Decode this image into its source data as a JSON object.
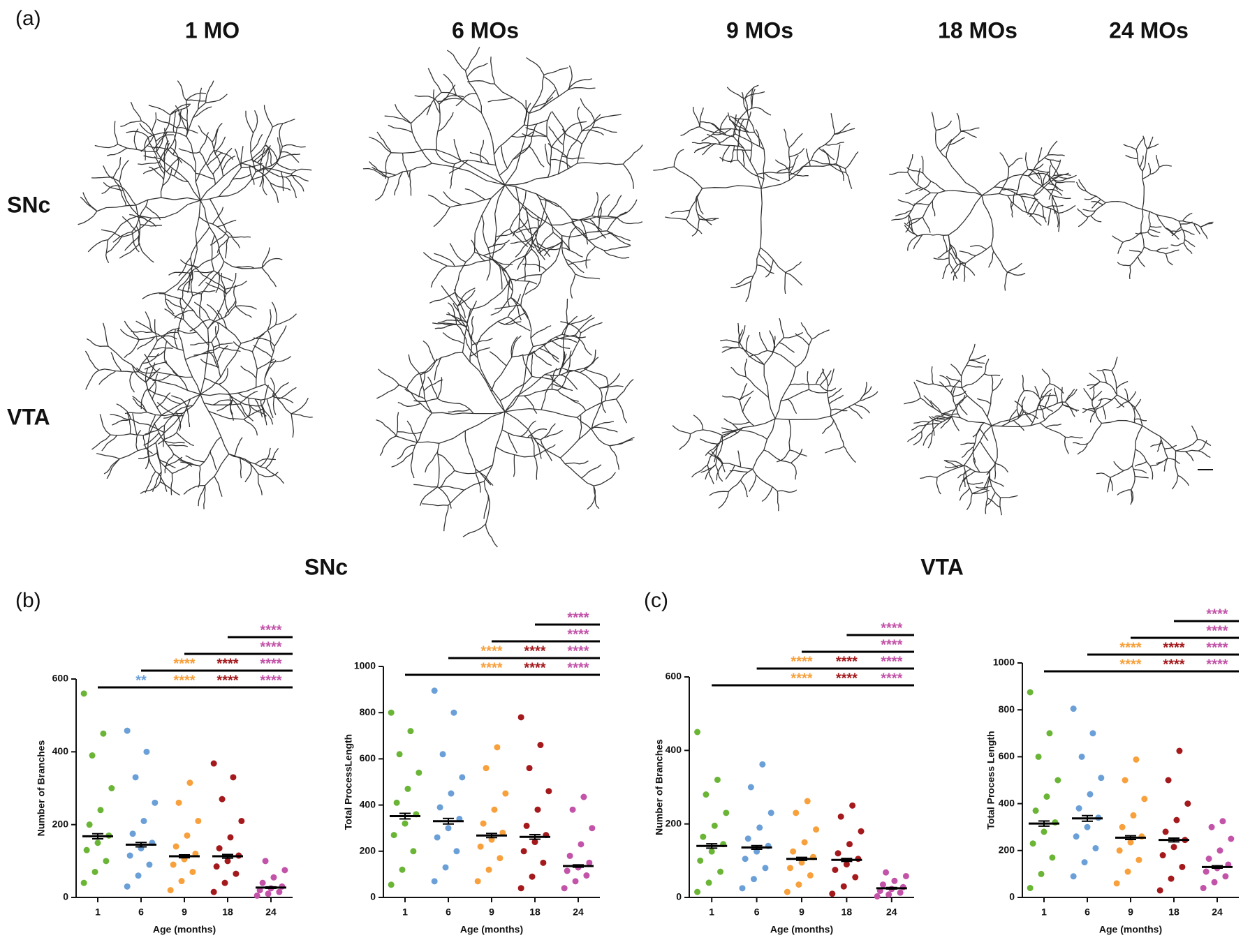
{
  "panel_labels": [
    "(a)",
    "(b)",
    "(c)"
  ],
  "headers": [
    "1 MO",
    "6 MOs",
    "9 MOs",
    "18 MOs",
    "24 MOs"
  ],
  "row_labels": [
    "SNc",
    "VTA"
  ],
  "section_titles": [
    "SNc",
    "VTA"
  ],
  "chart_data": [
    {
      "type": "strip",
      "xlabel": "Age (months)",
      "ylabel": "Number of Branches",
      "categories": [
        "1",
        "6",
        "9",
        "18",
        "24"
      ],
      "colors": [
        "#6bb536",
        "#6a9fd8",
        "#f7a03c",
        "#a3191c",
        "#c253a8"
      ],
      "means": [
        168,
        145,
        113,
        113,
        27
      ],
      "sem": [
        7,
        6,
        4,
        5,
        2
      ],
      "points": [
        [
          40,
          70,
          100,
          130,
          150,
          170,
          200,
          240,
          300,
          390,
          450,
          560
        ],
        [
          30,
          60,
          90,
          115,
          135,
          150,
          175,
          210,
          260,
          330,
          400,
          458
        ],
        [
          20,
          45,
          70,
          90,
          105,
          120,
          140,
          170,
          210,
          260,
          315
        ],
        [
          15,
          40,
          65,
          85,
          100,
          115,
          135,
          165,
          210,
          270,
          330,
          368
        ],
        [
          5,
          10,
          15,
          20,
          25,
          30,
          40,
          55,
          75,
          100
        ]
      ],
      "ylim": [
        0,
        600
      ],
      "yticks": [
        0,
        200,
        400,
        600
      ],
      "comparisons": [
        {
          "from": "1",
          "stars": [
            {
              "at": "6",
              "label": "**"
            },
            {
              "at": "9",
              "label": "****"
            },
            {
              "at": "18",
              "label": "****"
            },
            {
              "at": "24",
              "label": "****"
            }
          ]
        },
        {
          "from": "6",
          "stars": [
            {
              "at": "9",
              "label": "****"
            },
            {
              "at": "18",
              "label": "****"
            },
            {
              "at": "24",
              "label": "****"
            }
          ]
        },
        {
          "from": "9",
          "stars": [
            {
              "at": "24",
              "label": "****"
            }
          ]
        },
        {
          "from": "18",
          "stars": [
            {
              "at": "24",
              "label": "****"
            }
          ]
        }
      ]
    },
    {
      "type": "strip",
      "xlabel": "Age (months)",
      "ylabel": "Total ProcessLength",
      "categories": [
        "1",
        "6",
        "9",
        "18",
        "24"
      ],
      "colors": [
        "#6bb536",
        "#6a9fd8",
        "#f7a03c",
        "#a3191c",
        "#c253a8"
      ],
      "means": [
        352,
        330,
        268,
        262,
        136
      ],
      "sem": [
        12,
        12,
        9,
        10,
        5
      ],
      "points": [
        [
          55,
          120,
          200,
          270,
          320,
          360,
          410,
          470,
          540,
          620,
          720,
          800
        ],
        [
          70,
          130,
          200,
          260,
          300,
          340,
          390,
          450,
          520,
          620,
          800,
          895
        ],
        [
          70,
          120,
          170,
          220,
          250,
          280,
          320,
          380,
          450,
          560,
          650
        ],
        [
          40,
          90,
          150,
          200,
          240,
          270,
          310,
          380,
          460,
          560,
          660,
          780
        ],
        [
          40,
          70,
          95,
          115,
          130,
          150,
          180,
          230,
          300,
          380,
          435
        ]
      ],
      "ylim": [
        0,
        1000
      ],
      "yticks": [
        0,
        200,
        400,
        600,
        800,
        1000
      ],
      "comparisons": [
        {
          "from": "1",
          "stars": [
            {
              "at": "9",
              "label": "****"
            },
            {
              "at": "18",
              "label": "****"
            },
            {
              "at": "24",
              "label": "****"
            }
          ]
        },
        {
          "from": "6",
          "stars": [
            {
              "at": "9",
              "label": "****"
            },
            {
              "at": "18",
              "label": "****"
            },
            {
              "at": "24",
              "label": "****"
            }
          ]
        },
        {
          "from": "9",
          "stars": [
            {
              "at": "24",
              "label": "****"
            }
          ]
        },
        {
          "from": "18",
          "stars": [
            {
              "at": "24",
              "label": "****"
            }
          ]
        }
      ]
    },
    {
      "type": "strip",
      "xlabel": "Age (months)",
      "ylabel": "Number of Branches",
      "categories": [
        "1",
        "6",
        "9",
        "18",
        "24"
      ],
      "colors": [
        "#6bb536",
        "#6a9fd8",
        "#f7a03c",
        "#a3191c",
        "#c253a8"
      ],
      "means": [
        140,
        136,
        105,
        102,
        25
      ],
      "sem": [
        6,
        5,
        4,
        4,
        2
      ],
      "points": [
        [
          15,
          40,
          70,
          100,
          125,
          145,
          165,
          195,
          230,
          280,
          320,
          450
        ],
        [
          25,
          50,
          80,
          105,
          125,
          140,
          160,
          190,
          230,
          300,
          362
        ],
        [
          15,
          35,
          60,
          80,
          95,
          110,
          125,
          150,
          185,
          230,
          262
        ],
        [
          10,
          30,
          55,
          75,
          90,
          105,
          120,
          145,
          180,
          220,
          250
        ],
        [
          3,
          8,
          13,
          18,
          23,
          28,
          35,
          45,
          58,
          68
        ]
      ],
      "ylim": [
        0,
        600
      ],
      "yticks": [
        0,
        200,
        400,
        600
      ],
      "comparisons": [
        {
          "from": "1",
          "stars": [
            {
              "at": "9",
              "label": "****"
            },
            {
              "at": "18",
              "label": "****"
            },
            {
              "at": "24",
              "label": "****"
            }
          ]
        },
        {
          "from": "6",
          "stars": [
            {
              "at": "9",
              "label": "****"
            },
            {
              "at": "18",
              "label": "****"
            },
            {
              "at": "24",
              "label": "****"
            }
          ]
        },
        {
          "from": "9",
          "stars": [
            {
              "at": "24",
              "label": "****"
            }
          ]
        },
        {
          "from": "18",
          "stars": [
            {
              "at": "24",
              "label": "****"
            }
          ]
        }
      ]
    },
    {
      "type": "strip",
      "xlabel": "Age (months)",
      "ylabel": "Total Process Length",
      "categories": [
        "1",
        "6",
        "9",
        "18",
        "24"
      ],
      "colors": [
        "#6bb536",
        "#6a9fd8",
        "#f7a03c",
        "#a3191c",
        "#c253a8"
      ],
      "means": [
        315,
        337,
        255,
        245,
        130
      ],
      "sem": [
        11,
        12,
        8,
        8,
        5
      ],
      "points": [
        [
          40,
          100,
          170,
          230,
          280,
          320,
          370,
          430,
          500,
          600,
          700,
          875
        ],
        [
          90,
          150,
          210,
          260,
          300,
          340,
          380,
          440,
          510,
          600,
          700,
          805
        ],
        [
          60,
          110,
          160,
          200,
          235,
          260,
          300,
          350,
          420,
          500,
          588
        ],
        [
          30,
          80,
          130,
          180,
          215,
          245,
          280,
          330,
          400,
          500,
          625
        ],
        [
          40,
          65,
          90,
          110,
          125,
          140,
          165,
          200,
          250,
          300,
          325
        ]
      ],
      "ylim": [
        0,
        1000
      ],
      "yticks": [
        0,
        200,
        400,
        600,
        800,
        1000
      ],
      "comparisons": [
        {
          "from": "1",
          "stars": [
            {
              "at": "9",
              "label": "****"
            },
            {
              "at": "18",
              "label": "****"
            },
            {
              "at": "24",
              "label": "****"
            }
          ]
        },
        {
          "from": "6",
          "stars": [
            {
              "at": "9",
              "label": "****"
            },
            {
              "at": "18",
              "label": "****"
            },
            {
              "at": "24",
              "label": "****"
            }
          ]
        },
        {
          "from": "9",
          "stars": [
            {
              "at": "24",
              "label": "****"
            }
          ]
        },
        {
          "from": "18",
          "stars": [
            {
              "at": "24",
              "label": "****"
            }
          ]
        }
      ]
    }
  ]
}
